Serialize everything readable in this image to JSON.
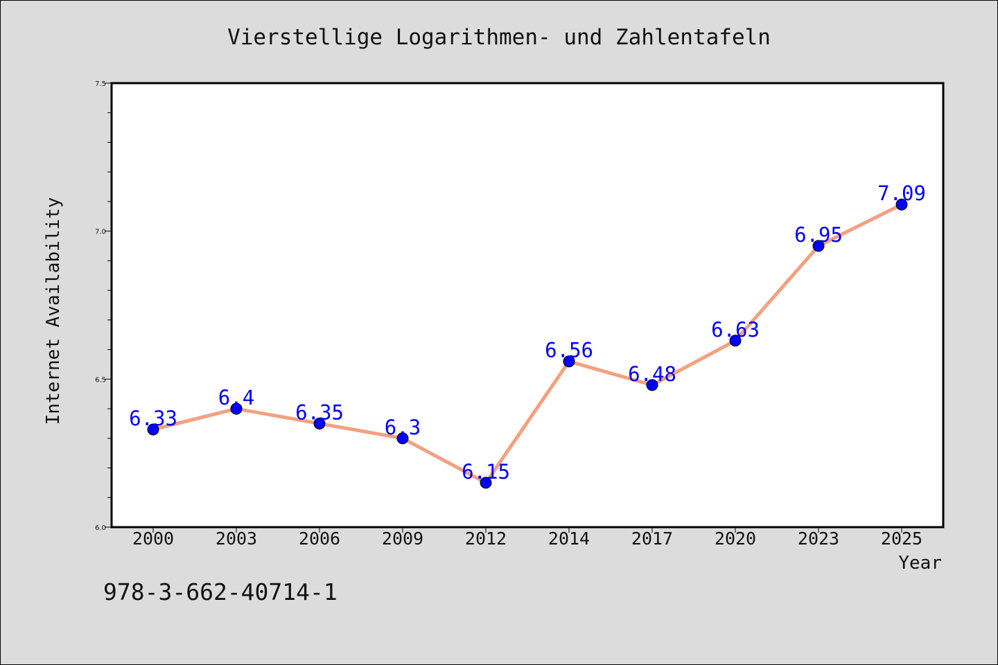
{
  "chart_data": {
    "type": "line",
    "title": "Vierstellige Logarithmen- und Zahlentafeln",
    "xlabel": "Year",
    "ylabel": "Internet Availability",
    "categories": [
      "2000",
      "2003",
      "2006",
      "2009",
      "2012",
      "2014",
      "2017",
      "2020",
      "2023",
      "2025"
    ],
    "values": [
      6.33,
      6.4,
      6.35,
      6.3,
      6.15,
      6.56,
      6.48,
      6.63,
      6.95,
      7.09
    ],
    "data_labels": [
      "6.33",
      "6.4",
      "6.35",
      "6.3",
      "6.15",
      "6.56",
      "6.48",
      "6.63",
      "6.95",
      "7.09"
    ],
    "ylim": [
      6.0,
      7.5
    ],
    "y_ticks": [
      6.0,
      6.5,
      7.0,
      7.5
    ],
    "y_tick_labels": [
      "6.0",
      "6.5",
      "7.0",
      "7.5"
    ],
    "y_minor_step": 0.1,
    "grid": false,
    "colors": {
      "line": "#f4a07e",
      "marker": "#0000ff",
      "data_label": "#0000ff",
      "plot_background": "#ffffff",
      "figure_background": "#dcdcdc"
    }
  },
  "annotation": {
    "isbn": "978-3-662-40714-1"
  }
}
